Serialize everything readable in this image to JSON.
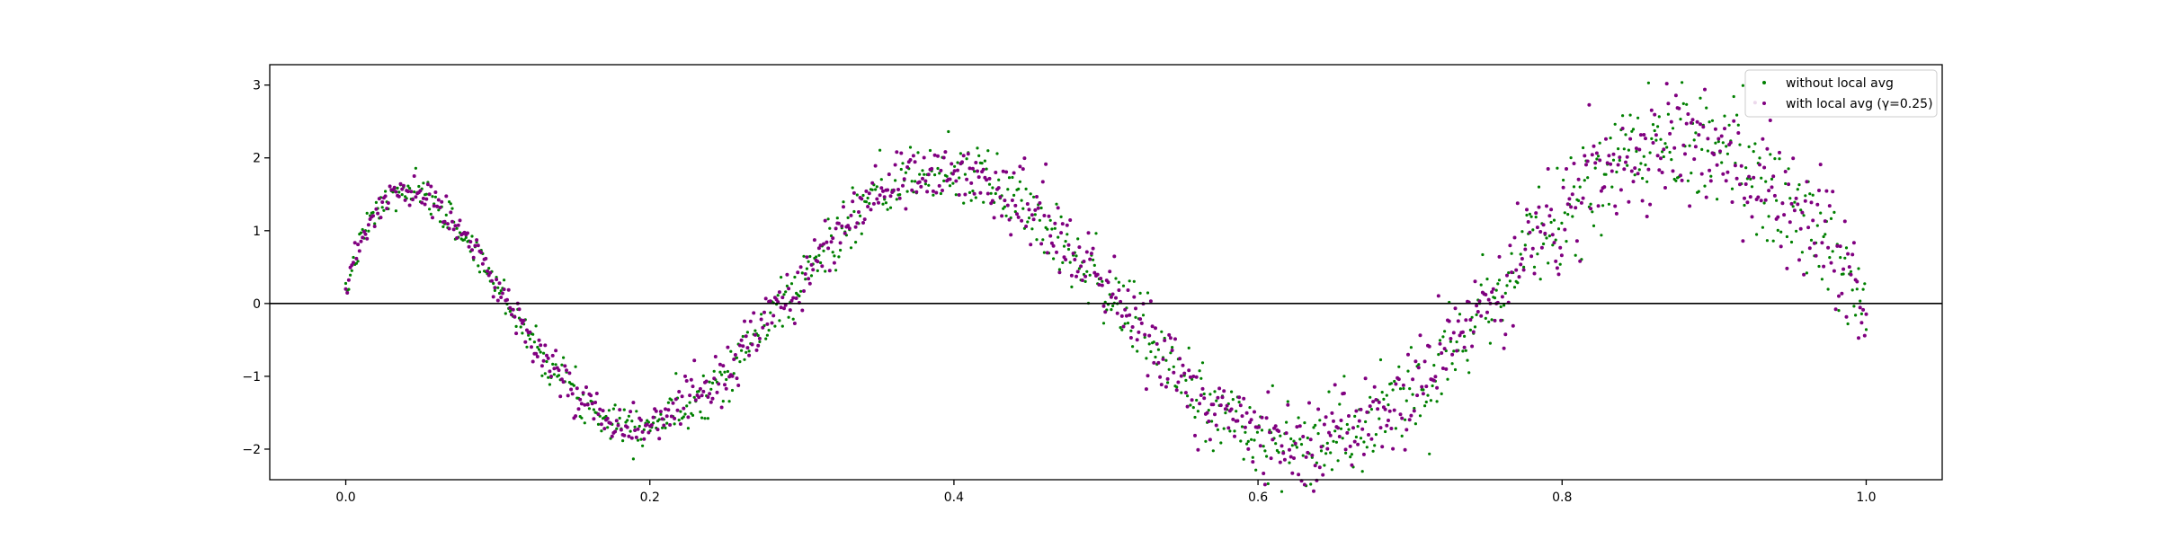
{
  "chart_data": {
    "type": "scatter",
    "title": "",
    "xlabel": "",
    "ylabel": "",
    "xlim": [
      -0.05,
      1.05
    ],
    "ylim": [
      -2.42,
      3.28
    ],
    "xticks": [
      0.0,
      0.2,
      0.4,
      0.6,
      0.8,
      1.0
    ],
    "xtick_labels": [
      "0.0",
      "0.2",
      "0.4",
      "0.6",
      "0.8",
      "1.0"
    ],
    "yticks": [
      -2,
      -1,
      0,
      1,
      2,
      3
    ],
    "ytick_labels": [
      "−2",
      "−1",
      "0",
      "1",
      "2",
      "3"
    ],
    "grid": false,
    "reference_line": {
      "y": 0,
      "color": "#000000"
    },
    "legend": {
      "placement": "top-right"
    },
    "x_points": 1000,
    "series": [
      {
        "name": "without local avg",
        "color": "#008000",
        "generator": "y = 1.5*sin(15*x^0.7 + 0.7*x^3)*(1 + 0.5*x) + noise(0.1 + 0.3*x)",
        "noise_seed": 7
      },
      {
        "name": "with local avg (γ=0.25)",
        "color": "#800080",
        "generator": "y = 1.5*sin(15*x^0.7 + 0.7*x^3)*(1 + 0.5*x) + noise(0.1 + 0.3*x)",
        "noise_seed": 23
      }
    ]
  }
}
